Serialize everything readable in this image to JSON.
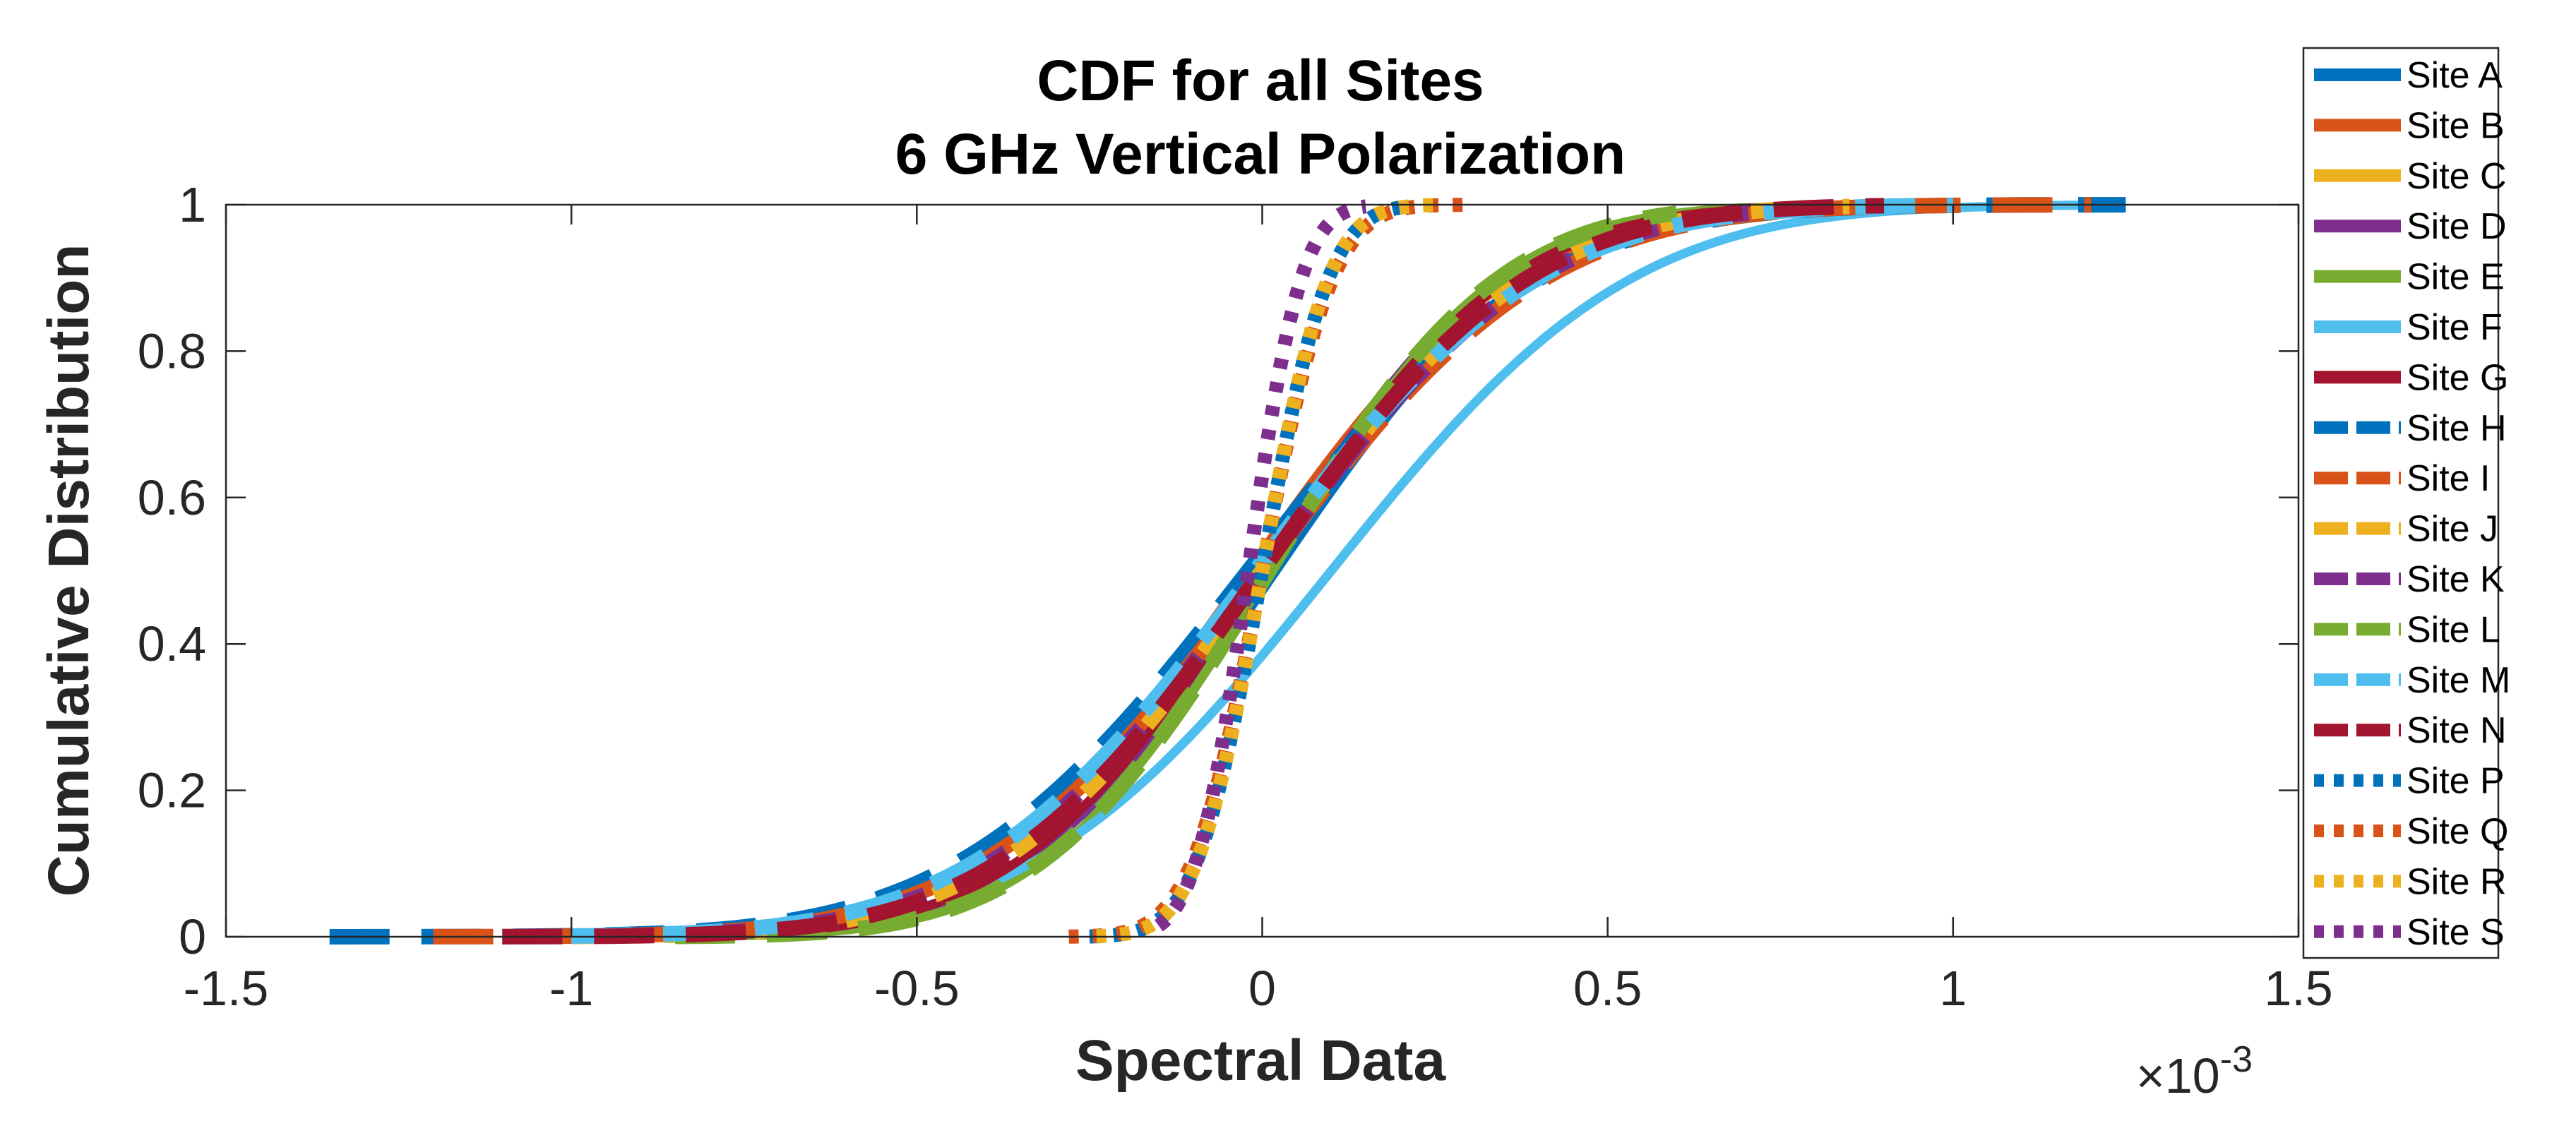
{
  "chart_data": {
    "type": "line",
    "title": "CDF for all Sites",
    "subtitle": "6 GHz Vertical Polarization",
    "xlabel": "Spectral Data",
    "ylabel": "Cumulative Distribution",
    "x_exponent_base": "×10",
    "x_exponent_power": "-3",
    "xlim": [
      -1.5,
      1.5
    ],
    "ylim": [
      0,
      1
    ],
    "xticks": [
      -1.5,
      -1,
      -0.5,
      0,
      0.5,
      1,
      1.5
    ],
    "xtick_labels": [
      "-1.5",
      "-1",
      "-0.5",
      "0",
      "0.5",
      "1",
      "1.5"
    ],
    "yticks": [
      0,
      0.2,
      0.4,
      0.6,
      0.8,
      1
    ],
    "ytick_labels": [
      "0",
      "0.2",
      "0.4",
      "0.6",
      "0.8",
      "1"
    ],
    "grid": false,
    "legend_position": "outside-right",
    "series": [
      {
        "name": "Site A",
        "color": "#0072BD",
        "style": "solid",
        "mu": 0.02,
        "sigma": 0.29,
        "xmin": -0.9,
        "xmax": 0.9
      },
      {
        "name": "Site B",
        "color": "#D95319",
        "style": "solid",
        "mu": -0.02,
        "sigma": 0.3,
        "xmin": -0.95,
        "xmax": 0.85
      },
      {
        "name": "Site C",
        "color": "#EDB120",
        "style": "solid",
        "mu": 0.0,
        "sigma": 0.27,
        "xmin": -0.85,
        "xmax": 0.75
      },
      {
        "name": "Site D",
        "color": "#7E2F8E",
        "style": "solid",
        "mu": 0.0,
        "sigma": 0.27,
        "xmin": -0.85,
        "xmax": 0.75
      },
      {
        "name": "Site E",
        "color": "#77AC30",
        "style": "solid",
        "mu": 0.01,
        "sigma": 0.26,
        "xmin": -0.85,
        "xmax": 0.7
      },
      {
        "name": "Site F",
        "color": "#4DBEEE",
        "style": "solid",
        "mu": 0.1,
        "sigma": 0.34,
        "xmin": -0.95,
        "xmax": 1.25
      },
      {
        "name": "Site G",
        "color": "#A2142F",
        "style": "solid",
        "mu": 0.0,
        "sigma": 0.28,
        "xmin": -0.85,
        "xmax": 0.8
      },
      {
        "name": "Site H",
        "color": "#0072BD",
        "style": "dashed",
        "mu": -0.02,
        "sigma": 0.33,
        "xmin": -1.35,
        "xmax": 1.25
      },
      {
        "name": "Site I",
        "color": "#D95319",
        "style": "dashed",
        "mu": 0.0,
        "sigma": 0.32,
        "xmin": -1.2,
        "xmax": 1.2
      },
      {
        "name": "Site J",
        "color": "#EDB120",
        "style": "dashed",
        "mu": 0.0,
        "sigma": 0.3,
        "xmin": -1.0,
        "xmax": 0.85
      },
      {
        "name": "Site K",
        "color": "#7E2F8E",
        "style": "dashed",
        "mu": 0.0,
        "sigma": 0.31,
        "xmin": -1.1,
        "xmax": 0.8
      },
      {
        "name": "Site L",
        "color": "#77AC30",
        "style": "dashed",
        "mu": 0.01,
        "sigma": 0.26,
        "xmin": -0.85,
        "xmax": 0.6
      },
      {
        "name": "Site M",
        "color": "#4DBEEE",
        "style": "dashed",
        "mu": -0.01,
        "sigma": 0.32,
        "xmin": -1.0,
        "xmax": 1.0
      },
      {
        "name": "Site N",
        "color": "#A2142F",
        "style": "dashed",
        "mu": 0.0,
        "sigma": 0.3,
        "xmin": -1.1,
        "xmax": 0.9
      },
      {
        "name": "Site P",
        "color": "#0072BD",
        "style": "dotted",
        "mu": 0.0,
        "sigma": 0.075,
        "xmin": -0.25,
        "xmax": 0.22
      },
      {
        "name": "Site Q",
        "color": "#D95319",
        "style": "dotted",
        "mu": 0.0,
        "sigma": 0.08,
        "xmin": -0.28,
        "xmax": 0.3
      },
      {
        "name": "Site R",
        "color": "#EDB120",
        "style": "dotted",
        "mu": 0.0,
        "sigma": 0.075,
        "xmin": -0.24,
        "xmax": 0.25
      },
      {
        "name": "Site S",
        "color": "#7E2F8E",
        "style": "dotted",
        "mu": -0.02,
        "sigma": 0.06,
        "xmin": -0.15,
        "xmax": 0.15
      }
    ]
  }
}
